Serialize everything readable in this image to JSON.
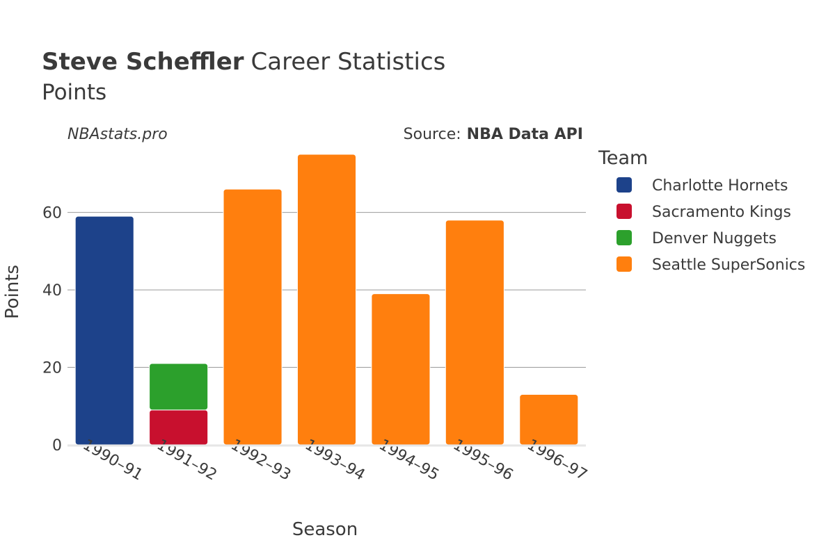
{
  "header": {
    "player_name": "Steve Scheffler",
    "title_suffix": "Career Statistics",
    "subtitle": "Points",
    "credit": "NBAstats.pro",
    "source_label": "Source:",
    "source_name": "NBA Data API"
  },
  "legend": {
    "title": "Team"
  },
  "chart_data": {
    "type": "bar",
    "stacked": true,
    "title": "Steve Scheffler Career Statistics",
    "subtitle": "Points",
    "xlabel": "Season",
    "ylabel": "Points",
    "ylim": [
      0,
      75
    ],
    "yticks": [
      0,
      20,
      40,
      60
    ],
    "grid": true,
    "legend_position": "right",
    "categories": [
      "1990–91",
      "1991–92",
      "1992–93",
      "1993–94",
      "1994–95",
      "1995–96",
      "1996–97"
    ],
    "series": [
      {
        "name": "Charlotte Hornets",
        "color": "#1d428a",
        "values": [
          59,
          null,
          null,
          null,
          null,
          null,
          null
        ]
      },
      {
        "name": "Sacramento Kings",
        "color": "#c8102e",
        "values": [
          null,
          9,
          null,
          null,
          null,
          null,
          null
        ]
      },
      {
        "name": "Denver Nuggets",
        "color": "#2ca02c",
        "values": [
          null,
          12,
          null,
          null,
          null,
          null,
          null
        ]
      },
      {
        "name": "Seattle SuperSonics",
        "color": "#ff7f0e",
        "values": [
          null,
          null,
          66,
          75,
          39,
          58,
          13
        ]
      }
    ]
  }
}
